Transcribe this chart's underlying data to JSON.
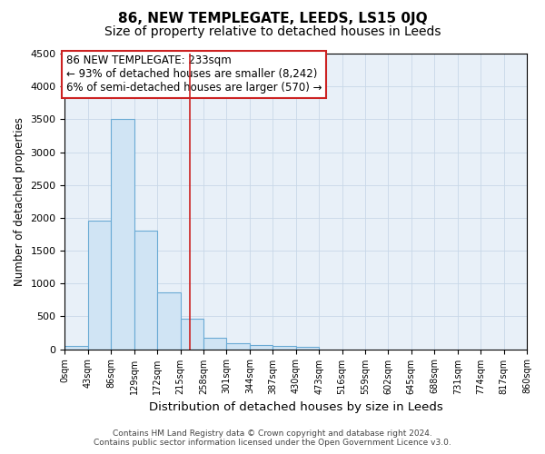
{
  "title": "86, NEW TEMPLEGATE, LEEDS, LS15 0JQ",
  "subtitle": "Size of property relative to detached houses in Leeds",
  "xlabel": "Distribution of detached houses by size in Leeds",
  "ylabel": "Number of detached properties",
  "bin_edges": [
    0,
    43,
    86,
    129,
    172,
    215,
    258,
    301,
    344,
    387,
    430,
    473,
    516,
    559,
    602,
    645,
    688,
    731,
    774,
    817,
    860
  ],
  "bar_heights": [
    50,
    1950,
    3500,
    1800,
    870,
    470,
    175,
    90,
    60,
    45,
    30,
    0,
    0,
    0,
    0,
    0,
    0,
    0,
    0,
    0
  ],
  "bar_color": "#d0e4f4",
  "bar_edge_color": "#6aaad4",
  "grid_color": "#c8d8e8",
  "bg_color": "#e8f0f8",
  "property_size": 233,
  "vline_color": "#cc2222",
  "annotation_text": "86 NEW TEMPLEGATE: 233sqm\n← 93% of detached houses are smaller (8,242)\n6% of semi-detached houses are larger (570) →",
  "annotation_box_color": "#cc2222",
  "footer_line1": "Contains HM Land Registry data © Crown copyright and database right 2024.",
  "footer_line2": "Contains public sector information licensed under the Open Government Licence v3.0.",
  "ylim": [
    0,
    4500
  ],
  "title_fontsize": 11,
  "subtitle_fontsize": 10,
  "annot_fontsize": 8.5,
  "tick_labels": [
    "0sqm",
    "43sqm",
    "86sqm",
    "129sqm",
    "172sqm",
    "215sqm",
    "258sqm",
    "301sqm",
    "344sqm",
    "387sqm",
    "430sqm",
    "473sqm",
    "516sqm",
    "559sqm",
    "602sqm",
    "645sqm",
    "688sqm",
    "731sqm",
    "774sqm",
    "817sqm",
    "860sqm"
  ]
}
